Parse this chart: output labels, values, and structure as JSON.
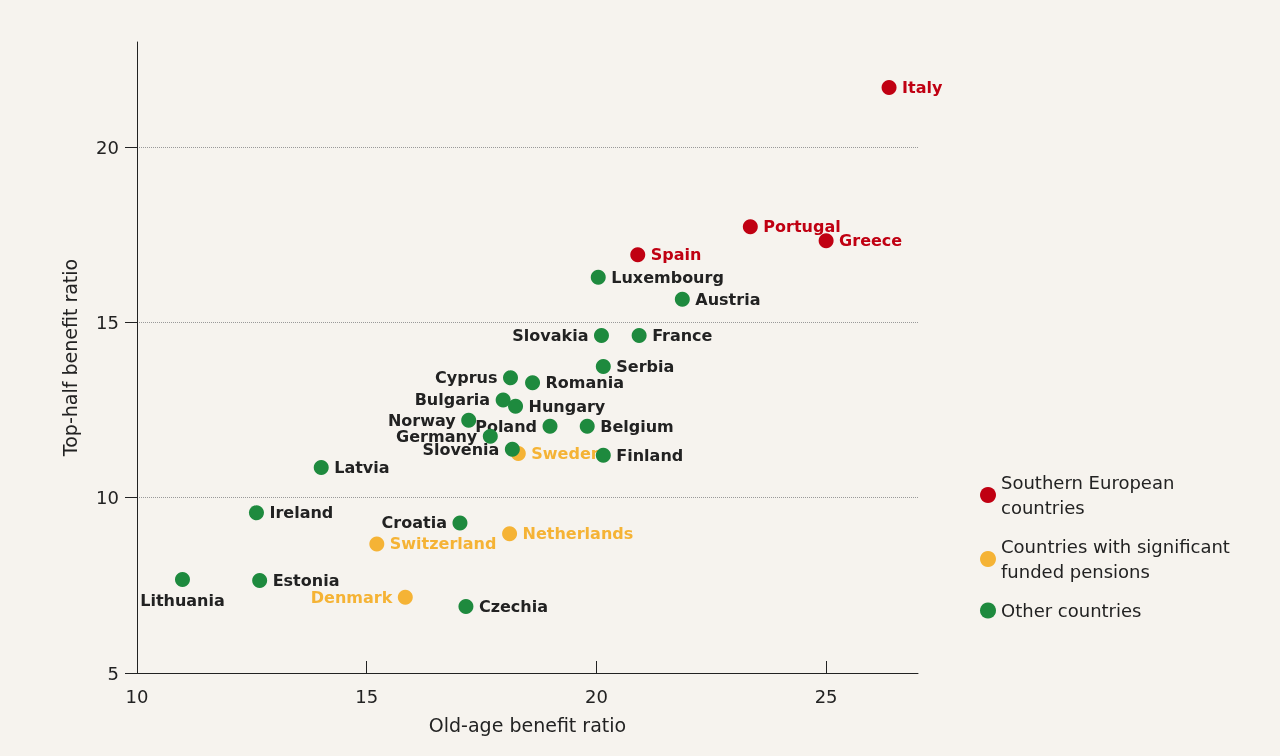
{
  "chart_data": {
    "type": "scatter",
    "xlabel": "Old-age benefit ratio",
    "ylabel": "Top-half benefit ratio",
    "xlim": [
      10,
      27
    ],
    "xticks": [
      10,
      15,
      20,
      25
    ],
    "ylim": [
      5,
      23
    ],
    "yticks": [
      5,
      10,
      15,
      20
    ],
    "grid": "y",
    "legend": "right",
    "marker": "circle",
    "series": [
      {
        "name": "Southern European countries",
        "color": "#c00012",
        "x": [
          26.37,
          23.35,
          25.0,
          20.9
        ],
        "values": [
          21.7,
          17.73,
          17.33,
          16.93
        ]
      },
      {
        "name": "Countries with significant funded pensions",
        "color": "#f5b335",
        "x": [
          18.3,
          18.11,
          15.22,
          15.84
        ],
        "values": [
          11.26,
          8.97,
          8.68,
          7.16
        ]
      },
      {
        "name": "Other countries",
        "color": "#1e8a3e",
        "x": [
          20.04,
          21.87,
          20.11,
          20.93,
          20.15,
          18.13,
          18.61,
          17.97,
          18.24,
          17.22,
          18.99,
          19.8,
          17.69,
          18.17,
          20.15,
          14.01,
          12.6,
          17.03,
          10.99,
          12.67,
          17.16
        ],
        "values": [
          16.29,
          15.66,
          14.63,
          14.63,
          13.74,
          13.42,
          13.28,
          12.79,
          12.61,
          12.21,
          12.04,
          12.04,
          11.75,
          11.38,
          11.21,
          10.86,
          9.57,
          9.28,
          7.67,
          7.64,
          6.9
        ]
      }
    ],
    "annotations": [
      {
        "text": "Italy",
        "x": 26.37,
        "y": 21.7
      },
      {
        "text": "Portugal",
        "x": 23.35,
        "y": 17.73
      },
      {
        "text": "Greece",
        "x": 25.0,
        "y": 17.33
      },
      {
        "text": "Spain",
        "x": 20.9,
        "y": 16.93
      },
      {
        "text": "Sweden",
        "x": 18.3,
        "y": 11.26
      },
      {
        "text": "Netherlands",
        "x": 18.11,
        "y": 8.97
      },
      {
        "text": "Switzerland",
        "x": 15.22,
        "y": 8.68
      },
      {
        "text": "Denmark",
        "x": 15.84,
        "y": 7.16
      },
      {
        "text": "Luxembourg",
        "x": 20.04,
        "y": 16.29
      },
      {
        "text": "Austria",
        "x": 21.87,
        "y": 15.66
      },
      {
        "text": "Slovakia",
        "x": 20.11,
        "y": 14.63
      },
      {
        "text": "France",
        "x": 20.93,
        "y": 14.63
      },
      {
        "text": "Serbia",
        "x": 20.15,
        "y": 13.74
      },
      {
        "text": "Cyprus",
        "x": 18.13,
        "y": 13.42
      },
      {
        "text": "Romania",
        "x": 18.61,
        "y": 13.28
      },
      {
        "text": "Bulgaria",
        "x": 17.97,
        "y": 12.79
      },
      {
        "text": "Hungary",
        "x": 18.24,
        "y": 12.61
      },
      {
        "text": "Norway",
        "x": 17.22,
        "y": 12.21
      },
      {
        "text": "Poland",
        "x": 18.99,
        "y": 12.04
      },
      {
        "text": "Belgium",
        "x": 19.8,
        "y": 12.04
      },
      {
        "text": "Germany",
        "x": 17.69,
        "y": 11.75
      },
      {
        "text": "Slovenia",
        "x": 18.17,
        "y": 11.38
      },
      {
        "text": "Finland",
        "x": 20.15,
        "y": 11.21
      },
      {
        "text": "Latvia",
        "x": 14.01,
        "y": 10.86
      },
      {
        "text": "Ireland",
        "x": 12.6,
        "y": 9.57
      },
      {
        "text": "Croatia",
        "x": 17.03,
        "y": 9.28
      },
      {
        "text": "Lithuania",
        "x": 10.99,
        "y": 7.67
      },
      {
        "text": "Estonia",
        "x": 12.67,
        "y": 7.64
      },
      {
        "text": "Czechia",
        "x": 17.16,
        "y": 6.9
      }
    ]
  }
}
